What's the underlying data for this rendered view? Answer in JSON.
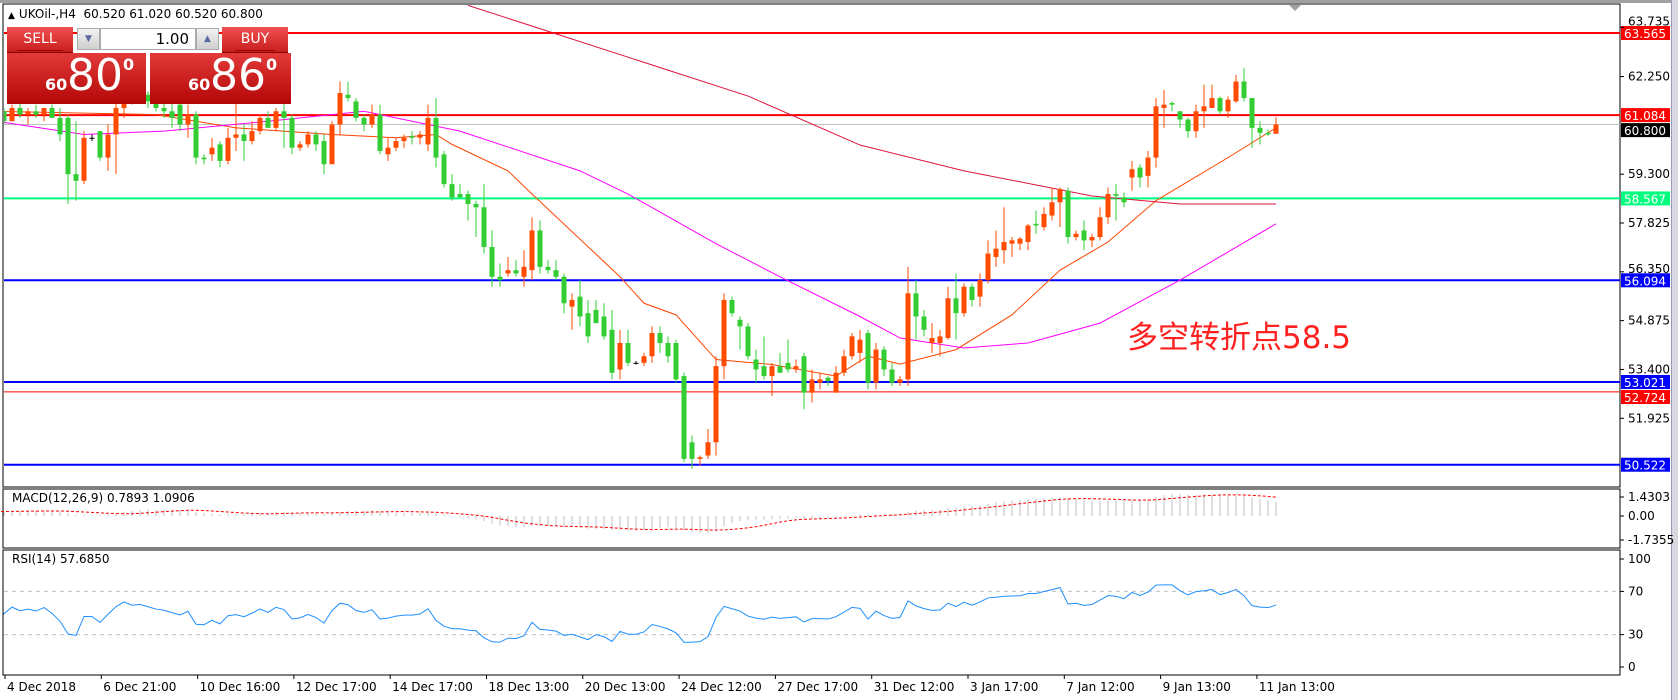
{
  "header": {
    "symbol": "UKOil-,H4",
    "ohlc": "60.520 61.020 60.520 60.800"
  },
  "trade_panel": {
    "sell_label": "SELL",
    "buy_label": "BUY",
    "lot": "1.00",
    "sell_price": {
      "small": "60",
      "big": "80",
      "sup": "0"
    },
    "buy_price": {
      "small": "60",
      "big": "86",
      "sup": "0"
    }
  },
  "annotation": "多空转折点58.5",
  "chart_data": {
    "type": "candlestick",
    "up_color": "#ff4a00",
    "down_color": "#32cd32",
    "candles": [
      [
        61.0,
        61.4,
        60.9,
        61.2
      ],
      [
        61.2,
        61.3,
        60.8,
        60.9
      ],
      [
        60.9,
        61.4,
        60.9,
        61.3
      ],
      [
        61.3,
        61.5,
        61.0,
        61.1
      ],
      [
        61.1,
        61.3,
        60.8,
        61.2
      ],
      [
        61.2,
        61.4,
        61.0,
        61.1
      ],
      [
        61.1,
        61.3,
        60.9,
        61.3
      ],
      [
        61.3,
        61.4,
        61.0,
        61.0
      ],
      [
        61.0,
        61.3,
        60.3,
        60.5
      ],
      [
        61.0,
        61.1,
        58.4,
        59.3
      ],
      [
        59.3,
        60.9,
        58.5,
        59.1
      ],
      [
        59.1,
        60.6,
        59.0,
        60.4
      ],
      [
        60.4,
        60.5,
        60.3,
        60.4
      ],
      [
        60.6,
        60.6,
        59.7,
        59.8
      ],
      [
        59.8,
        60.8,
        59.4,
        60.5
      ],
      [
        60.5,
        61.6,
        59.3,
        61.3
      ],
      [
        61.3,
        62.1,
        61.0,
        61.9
      ],
      [
        61.9,
        62.0,
        61.4,
        61.6
      ],
      [
        61.6,
        61.8,
        61.5,
        61.7
      ],
      [
        61.7,
        61.8,
        61.3,
        61.5
      ],
      [
        61.5,
        61.7,
        61.2,
        61.3
      ],
      [
        61.3,
        61.5,
        61.0,
        61.2
      ],
      [
        61.2,
        61.5,
        60.7,
        61.0
      ],
      [
        61.4,
        61.9,
        60.6,
        60.8
      ],
      [
        60.8,
        61.4,
        60.4,
        61.1
      ],
      [
        61.1,
        61.2,
        59.6,
        59.8
      ],
      [
        59.8,
        59.9,
        59.6,
        59.75
      ],
      [
        59.9,
        60.4,
        59.7,
        60.1
      ],
      [
        60.2,
        60.3,
        59.5,
        59.7
      ],
      [
        59.7,
        60.7,
        59.6,
        60.4
      ],
      [
        60.4,
        61.6,
        60.0,
        60.5
      ],
      [
        60.5,
        60.8,
        59.7,
        60.3
      ],
      [
        60.3,
        60.9,
        60.2,
        60.6
      ],
      [
        60.6,
        61.1,
        60.5,
        61.0
      ],
      [
        61.0,
        61.2,
        60.7,
        60.7
      ],
      [
        60.7,
        61.3,
        60.6,
        61.2
      ],
      [
        61.2,
        61.6,
        60.1,
        61.0
      ],
      [
        61.0,
        61.1,
        59.9,
        60.1
      ],
      [
        60.1,
        60.3,
        60.0,
        60.2
      ],
      [
        60.2,
        60.6,
        60.1,
        60.5
      ],
      [
        60.5,
        60.6,
        60.0,
        60.2
      ],
      [
        60.3,
        60.5,
        59.3,
        59.6
      ],
      [
        59.6,
        60.9,
        59.6,
        60.8
      ],
      [
        60.8,
        62.1,
        60.5,
        61.75
      ],
      [
        61.7,
        62.1,
        61.5,
        61.6
      ],
      [
        61.5,
        61.6,
        60.9,
        61.0
      ],
      [
        61.0,
        61.1,
        60.6,
        60.8
      ],
      [
        60.8,
        61.4,
        60.7,
        61.1
      ],
      [
        61.1,
        61.4,
        59.9,
        60.0
      ],
      [
        59.9,
        60.4,
        59.7,
        60.1
      ],
      [
        60.1,
        60.4,
        60.0,
        60.3
      ],
      [
        60.3,
        60.5,
        60.1,
        60.4
      ],
      [
        60.45,
        60.6,
        60.2,
        60.4
      ],
      [
        60.4,
        60.6,
        60.2,
        60.5
      ],
      [
        60.2,
        61.4,
        60.0,
        61.0
      ],
      [
        61.0,
        61.6,
        59.5,
        59.8
      ],
      [
        59.9,
        60.0,
        58.9,
        59.0
      ],
      [
        59.0,
        59.3,
        58.5,
        58.6
      ],
      [
        58.7,
        59.0,
        58.6,
        58.6
      ],
      [
        58.7,
        58.8,
        57.9,
        58.4
      ],
      [
        58.4,
        58.5,
        57.4,
        58.3
      ],
      [
        58.3,
        59.0,
        56.9,
        57.1
      ],
      [
        57.1,
        57.6,
        55.9,
        56.2
      ],
      [
        56.2,
        56.6,
        55.9,
        56.1
      ],
      [
        56.3,
        56.8,
        56.2,
        56.4
      ],
      [
        56.4,
        56.7,
        56.2,
        56.3
      ],
      [
        56.2,
        57.0,
        55.9,
        56.5
      ],
      [
        56.4,
        58.0,
        56.1,
        57.6
      ],
      [
        57.6,
        57.9,
        56.3,
        56.5
      ],
      [
        56.5,
        56.7,
        56.3,
        56.4
      ],
      [
        56.4,
        56.7,
        56.1,
        56.2
      ],
      [
        56.2,
        56.3,
        55.1,
        55.4
      ],
      [
        55.3,
        55.7,
        54.6,
        55.5
      ],
      [
        55.6,
        56.1,
        54.7,
        55.0
      ],
      [
        55.1,
        55.5,
        54.2,
        54.4
      ],
      [
        55.2,
        55.5,
        54.8,
        54.8
      ],
      [
        55.0,
        55.4,
        54.3,
        54.4
      ],
      [
        54.6,
        55.2,
        53.1,
        53.3
      ],
      [
        53.4,
        54.6,
        53.1,
        54.2
      ],
      [
        54.2,
        54.6,
        53.5,
        53.6
      ],
      [
        53.6,
        53.65,
        53.55,
        53.6
      ],
      [
        53.6,
        53.9,
        53.5,
        53.8
      ],
      [
        53.8,
        54.7,
        53.6,
        54.5
      ],
      [
        54.5,
        54.7,
        53.9,
        54.2
      ],
      [
        54.2,
        54.4,
        53.6,
        53.8
      ],
      [
        54.2,
        54.3,
        53.0,
        53.1
      ],
      [
        53.2,
        53.3,
        50.6,
        50.7
      ],
      [
        51.2,
        51.4,
        50.4,
        50.7
      ],
      [
        50.7,
        50.8,
        50.5,
        50.75
      ],
      [
        50.8,
        51.6,
        50.7,
        51.2
      ],
      [
        51.2,
        53.8,
        50.8,
        53.5
      ],
      [
        53.5,
        55.7,
        53.1,
        55.5
      ],
      [
        55.5,
        55.6,
        55.0,
        55.1
      ],
      [
        54.9,
        55.0,
        54.0,
        54.7
      ],
      [
        54.7,
        54.8,
        53.7,
        53.8
      ],
      [
        53.7,
        54.0,
        53.0,
        53.4
      ],
      [
        53.5,
        54.4,
        53.1,
        53.2
      ],
      [
        53.2,
        53.6,
        52.6,
        53.5
      ],
      [
        53.5,
        53.9,
        53.3,
        53.3
      ],
      [
        53.6,
        54.3,
        53.3,
        53.4
      ],
      [
        53.4,
        53.7,
        53.3,
        53.5
      ],
      [
        53.8,
        53.9,
        52.2,
        52.7
      ],
      [
        52.7,
        53.4,
        52.4,
        53.1
      ],
      [
        53.0,
        53.3,
        52.8,
        53.1
      ],
      [
        53.15,
        53.2,
        52.9,
        53.05
      ],
      [
        52.7,
        53.5,
        52.7,
        53.3
      ],
      [
        53.3,
        54.0,
        53.2,
        53.8
      ],
      [
        53.8,
        54.5,
        53.7,
        54.4
      ],
      [
        53.9,
        54.6,
        53.6,
        54.3
      ],
      [
        54.5,
        54.6,
        52.8,
        53.0
      ],
      [
        53.0,
        54.2,
        52.8,
        54.0
      ],
      [
        54.0,
        54.1,
        53.2,
        53.4
      ],
      [
        53.4,
        53.6,
        52.9,
        53.0
      ],
      [
        53.0,
        53.2,
        52.9,
        53.1
      ],
      [
        53.1,
        56.5,
        52.9,
        55.7
      ],
      [
        55.7,
        56.1,
        54.3,
        55.0
      ],
      [
        55.0,
        55.2,
        54.4,
        54.6
      ],
      [
        54.2,
        54.8,
        53.9,
        54.35
      ],
      [
        54.2,
        54.6,
        53.8,
        54.4
      ],
      [
        54.35,
        55.9,
        54.3,
        55.55
      ],
      [
        55.55,
        56.3,
        54.3,
        55.1
      ],
      [
        55.1,
        56.0,
        55.0,
        55.9
      ],
      [
        55.9,
        56.0,
        55.3,
        55.5
      ],
      [
        55.6,
        56.3,
        55.3,
        56.1
      ],
      [
        56.1,
        57.3,
        56.0,
        56.9
      ],
      [
        56.8,
        57.6,
        56.5,
        57.05
      ],
      [
        57.0,
        58.3,
        56.6,
        57.25
      ],
      [
        57.2,
        57.4,
        56.8,
        57.3
      ],
      [
        57.2,
        57.4,
        57.0,
        57.35
      ],
      [
        57.25,
        57.8,
        57.0,
        57.75
      ],
      [
        57.8,
        58.2,
        57.5,
        57.75
      ],
      [
        57.7,
        58.3,
        57.6,
        58.1
      ],
      [
        58.05,
        58.9,
        57.9,
        58.45
      ],
      [
        58.45,
        58.9,
        57.7,
        58.85
      ],
      [
        58.8,
        58.9,
        57.2,
        57.4
      ],
      [
        57.4,
        57.6,
        57.3,
        57.5
      ],
      [
        57.6,
        57.9,
        57.0,
        57.3
      ],
      [
        57.3,
        57.5,
        57.1,
        57.4
      ],
      [
        57.4,
        58.3,
        57.3,
        58.0
      ],
      [
        58.0,
        58.9,
        57.8,
        58.7
      ],
      [
        58.7,
        59.0,
        57.9,
        58.65
      ],
      [
        58.6,
        58.75,
        58.3,
        58.45
      ],
      [
        59.2,
        59.7,
        58.8,
        59.45
      ],
      [
        59.5,
        59.6,
        58.9,
        59.2
      ],
      [
        59.25,
        60.0,
        58.9,
        59.8
      ],
      [
        59.8,
        61.6,
        59.5,
        61.35
      ],
      [
        61.3,
        61.85,
        60.7,
        61.4
      ],
      [
        61.45,
        61.5,
        61.2,
        61.4
      ],
      [
        61.2,
        61.2,
        60.7,
        60.95
      ],
      [
        60.95,
        61.0,
        60.4,
        60.6
      ],
      [
        60.6,
        61.4,
        60.4,
        61.2
      ],
      [
        61.2,
        62.0,
        60.7,
        61.35
      ],
      [
        61.3,
        62.0,
        61.3,
        61.6
      ],
      [
        61.6,
        61.65,
        61.1,
        61.2
      ],
      [
        61.2,
        61.65,
        61.0,
        61.55
      ],
      [
        61.5,
        62.3,
        61.45,
        62.1
      ],
      [
        62.1,
        62.5,
        61.5,
        61.6
      ],
      [
        61.6,
        61.6,
        60.1,
        60.7
      ],
      [
        60.7,
        60.9,
        60.2,
        60.55
      ],
      [
        60.55,
        60.65,
        60.45,
        60.5
      ],
      [
        60.52,
        61.02,
        60.52,
        60.8
      ]
    ],
    "moving_averages": [
      {
        "color": "#ff4500",
        "points": [
          [
            0,
            61.2
          ],
          [
            20,
            61.1
          ],
          [
            30,
            60.7
          ],
          [
            42,
            60.5
          ],
          [
            50,
            60.4
          ],
          [
            55,
            60.5
          ],
          [
            57,
            60.2
          ],
          [
            64,
            59.4
          ],
          [
            67,
            58.7
          ],
          [
            78,
            56.2
          ],
          [
            81,
            55.4
          ],
          [
            85,
            55.05
          ],
          [
            90,
            53.7
          ],
          [
            97,
            53.55
          ],
          [
            105,
            53.2
          ],
          [
            109,
            53.8
          ],
          [
            113,
            53.56
          ],
          [
            120,
            54.0
          ],
          [
            127,
            55.05
          ],
          [
            133,
            56.4
          ],
          [
            139,
            57.25
          ],
          [
            145,
            58.5
          ],
          [
            154,
            59.8
          ],
          [
            160,
            60.7
          ]
        ]
      },
      {
        "color": "#ff00ff",
        "points": [
          [
            0,
            60.9
          ],
          [
            11,
            60.5
          ],
          [
            21,
            60.6
          ],
          [
            34,
            60.9
          ],
          [
            42,
            61.1
          ],
          [
            46,
            61.2
          ],
          [
            58,
            60.6
          ],
          [
            73,
            59.4
          ],
          [
            79,
            58.7
          ],
          [
            90,
            57.2
          ],
          [
            98,
            56.2
          ],
          [
            108,
            55.0
          ],
          [
            113,
            54.35
          ],
          [
            121,
            54.05
          ],
          [
            129,
            54.2
          ],
          [
            138,
            54.8
          ],
          [
            148,
            56.1
          ],
          [
            160,
            57.8
          ]
        ]
      },
      {
        "color": "#dc143c",
        "points": [
          [
            59,
            64.4
          ],
          [
            94,
            61.66
          ],
          [
            108,
            60.18
          ],
          [
            121,
            59.4
          ],
          [
            132,
            58.88
          ],
          [
            137,
            58.64
          ],
          [
            148,
            58.4
          ],
          [
            160,
            58.4
          ]
        ]
      }
    ],
    "levels": [
      {
        "price": 63.565,
        "label": "63.565",
        "color": "#ff0000"
      },
      {
        "price": 61.084,
        "label": "61.084",
        "color": "#ff0000"
      },
      {
        "price": 60.8,
        "label": "60.800",
        "color": "#000000",
        "line_color": "#c0c0c0"
      },
      {
        "price": 58.567,
        "label": "58.567",
        "color": "#00ff7f"
      },
      {
        "price": 56.094,
        "label": "56.094",
        "color": "#0000ff"
      },
      {
        "price": 53.021,
        "label": "53.021",
        "color": "#0000ff"
      },
      {
        "price": 52.724,
        "label": "52.724",
        "color": "#ff0000"
      },
      {
        "price": 50.522,
        "label": "50.522",
        "color": "#0000ff"
      }
    ],
    "y_ticks": [
      "63.735",
      "62.250",
      "59.300",
      "57.825",
      "56.350",
      "54.875",
      "53.400",
      "51.925"
    ],
    "x_labels": [
      "4 Dec 2018",
      "6 Dec 21:00",
      "10 Dec 16:00",
      "12 Dec 17:00",
      "14 Dec 17:00",
      "18 Dec 13:00",
      "20 Dec 13:00",
      "24 Dec 12:00",
      "27 Dec 17:00",
      "31 Dec 12:00",
      "3 Jan 17:00",
      "7 Jan 12:00",
      "9 Jan 13:00",
      "11 Jan 13:00"
    ],
    "macd": {
      "label": "MACD(12,26,9) 0.7893 1.0906",
      "ticks": [
        "1.4303",
        "0.00",
        "-1.7355"
      ],
      "hist_color": "#c0c0c0",
      "signal_color": "#ff0000"
    },
    "rsi": {
      "label": "RSI(14) 57.6850",
      "ticks": [
        "100",
        "70",
        "30",
        "0"
      ],
      "color": "#1e90ff"
    }
  }
}
